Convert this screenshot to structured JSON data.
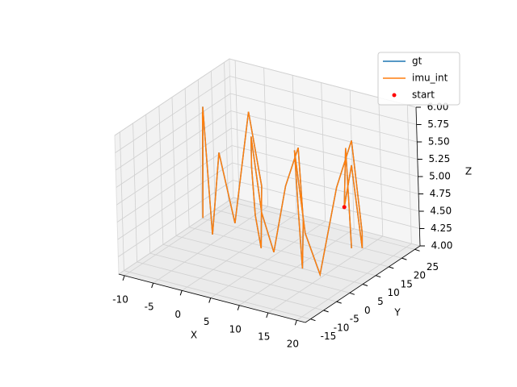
{
  "chart_data": {
    "type": "line3d",
    "xlabel": "X",
    "ylabel": "Y",
    "zlabel": "Z",
    "xlim": [
      -11,
      21.5
    ],
    "ylim": [
      -17,
      27
    ],
    "zlim": [
      4.0,
      6.0
    ],
    "xticks": [
      -10,
      -5,
      0,
      5,
      10,
      15,
      20
    ],
    "yticks": [
      -15,
      -10,
      -5,
      0,
      5,
      10,
      15,
      20,
      25
    ],
    "zticks": [
      {
        "value": 4,
        "label": "4.00"
      },
      {
        "value": 4.25,
        "label": "4.25"
      },
      {
        "value": 4.5,
        "label": "4.50"
      },
      {
        "value": 4.75,
        "label": "4.75"
      },
      {
        "value": 5,
        "label": "5.00"
      },
      {
        "value": 5.25,
        "label": "5.25"
      },
      {
        "value": 5.5,
        "label": "5.50"
      },
      {
        "value": 5.75,
        "label": "5.75"
      },
      {
        "value": 6,
        "label": "6.00"
      }
    ],
    "grid": true,
    "legend": "upper right",
    "series": [
      {
        "name": "gt",
        "color": "#1f77b4",
        "x": [
          -9,
          -9,
          -8,
          -7,
          -6,
          -4,
          -2,
          0,
          1,
          2,
          3,
          4,
          5,
          6,
          7,
          8,
          9,
          10,
          11,
          12,
          13,
          14,
          15,
          16,
          17,
          17,
          16,
          15,
          14,
          15,
          16
        ],
        "y": [
          12,
          11,
          10,
          9,
          8,
          7,
          8,
          10,
          12,
          9,
          5,
          2,
          0,
          1,
          3,
          6,
          9,
          8,
          5,
          2,
          -1,
          0,
          3,
          8,
          12,
          15,
          17,
          16,
          15,
          14,
          13
        ],
        "z": [
          5.65,
          4.15,
          5.8,
          4.9,
          4.05,
          5.3,
          4.3,
          5.9,
          4.8,
          4.0,
          4.6,
          5.4,
          5.9,
          4.8,
          4.2,
          5.1,
          5.6,
          4.6,
          4.0,
          4.9,
          5.9,
          4.7,
          4.05,
          5.2,
          5.8,
          4.4,
          4.1,
          5.3,
          4.7,
          5.6,
          4.2
        ]
      },
      {
        "name": "imu_int",
        "color": "#ff7f0e",
        "x": [
          -9,
          -9,
          -8,
          -7,
          -6,
          -4,
          -2,
          0,
          1,
          2,
          3,
          4,
          5,
          6,
          7,
          8,
          9,
          10,
          11,
          12,
          13,
          14,
          15,
          16,
          17,
          17,
          16,
          15,
          14,
          15,
          16
        ],
        "y": [
          12,
          11,
          10,
          9,
          8,
          7,
          8,
          10,
          12,
          9,
          5,
          2,
          0,
          1,
          3,
          6,
          9,
          8,
          5,
          2,
          -1,
          0,
          3,
          8,
          12,
          15,
          17,
          16,
          15,
          14,
          13
        ],
        "z": [
          5.65,
          4.15,
          5.8,
          4.9,
          4.05,
          5.3,
          4.3,
          5.9,
          4.8,
          4.0,
          4.6,
          5.4,
          5.9,
          4.8,
          4.2,
          5.1,
          5.6,
          4.6,
          4.0,
          4.9,
          5.9,
          4.7,
          4.05,
          5.2,
          5.8,
          4.4,
          4.1,
          5.3,
          4.7,
          5.6,
          4.2
        ]
      },
      {
        "name": "start",
        "color": "#ff0000",
        "marker": "o",
        "x": [
          14
        ],
        "y": [
          15
        ],
        "z": [
          4.7
        ]
      }
    ]
  }
}
